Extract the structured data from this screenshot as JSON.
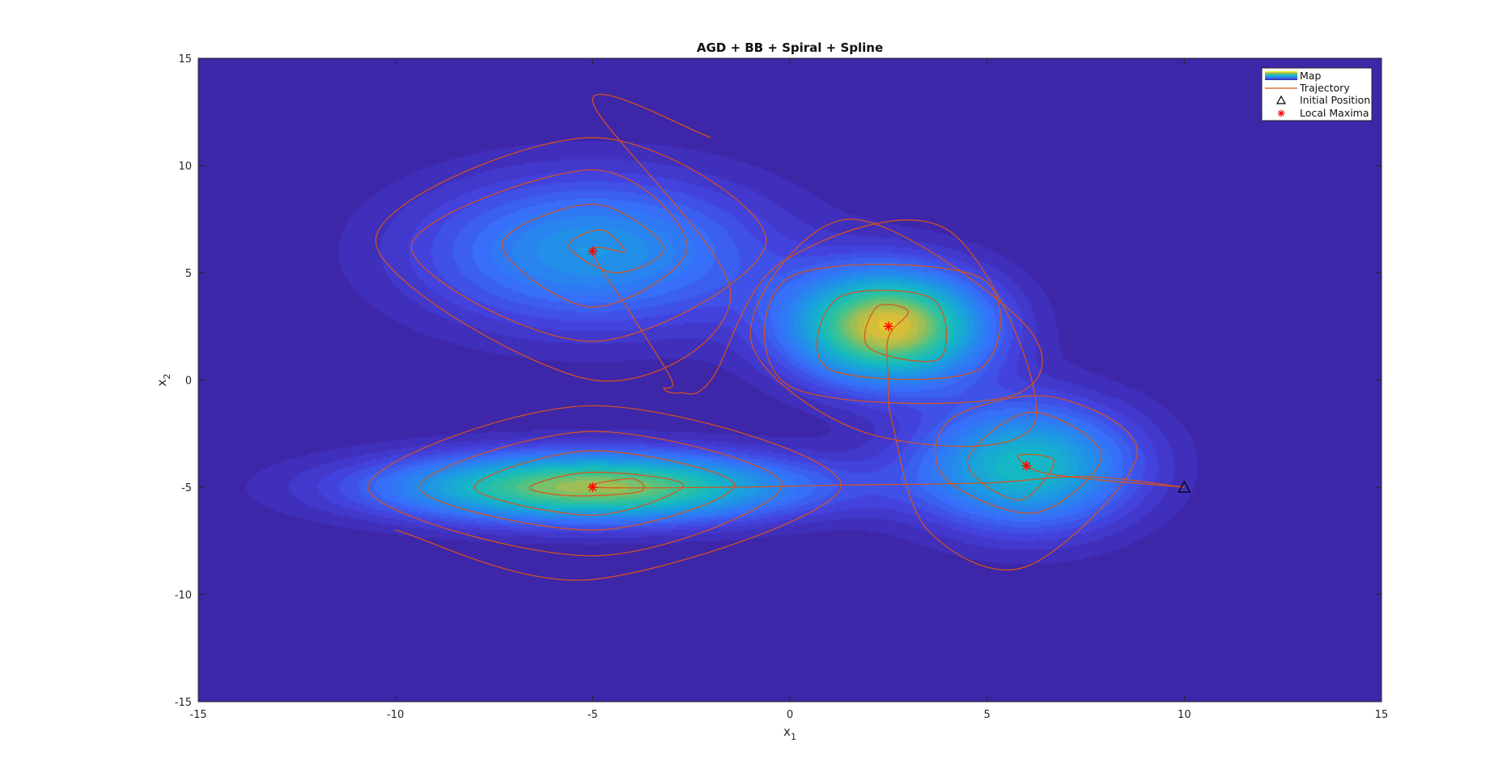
{
  "chart_data": {
    "type": "heatmap",
    "title": "AGD + BB + Spiral + Spline",
    "xlabel": "x",
    "xlabel_sub": "1",
    "ylabel": "x",
    "ylabel_sub": "2",
    "xlim": [
      -15,
      15
    ],
    "ylim": [
      -15,
      15
    ],
    "xticks": [
      -15,
      -10,
      -5,
      0,
      5,
      10,
      15
    ],
    "yticks": [
      -15,
      -10,
      -5,
      0,
      5,
      10,
      15
    ],
    "grid": false,
    "legend_placement": "top-right",
    "legend": [
      {
        "name": "Map",
        "kind": "colorbar"
      },
      {
        "name": "Trajectory",
        "kind": "line"
      },
      {
        "name": "Initial Position",
        "kind": "triangle"
      },
      {
        "name": "Local Maxima",
        "kind": "asterisk"
      }
    ],
    "map_peaks": [
      {
        "x": -5,
        "y": 6,
        "sx": 3.0,
        "sy": 2.4,
        "amp": 0.42
      },
      {
        "x": 2.5,
        "y": 2.5,
        "sx": 1.7,
        "sy": 1.8,
        "amp": 0.92
      },
      {
        "x": -5,
        "y": -5,
        "sx": 3.6,
        "sy": 1.1,
        "amp": 0.82
      },
      {
        "x": 6,
        "y": -4,
        "sx": 1.9,
        "sy": 2.0,
        "amp": 0.58
      }
    ],
    "initial_position": {
      "x": 10,
      "y": -5
    },
    "local_maxima": [
      {
        "x": 6,
        "y": -4
      },
      {
        "x": 2.5,
        "y": 2.5
      },
      {
        "x": -5,
        "y": 6
      },
      {
        "x": -5,
        "y": -5
      }
    ],
    "trajectory": [
      {
        "x": 10,
        "y": -5
      },
      {
        "x": 7.5,
        "y": -4.6
      },
      {
        "x": 6.2,
        "y": -4.2
      },
      {
        "x": 5.8,
        "y": -3.5
      },
      {
        "x": 6.7,
        "y": -3.8
      },
      {
        "x": 5.8,
        "y": -5.6
      },
      {
        "x": 4.5,
        "y": -3.8
      },
      {
        "x": 6.1,
        "y": -1.5
      },
      {
        "x": 7.9,
        "y": -3.5
      },
      {
        "x": 6.2,
        "y": -6.2
      },
      {
        "x": 3.9,
        "y": -4.5
      },
      {
        "x": 4.1,
        "y": -1.8
      },
      {
        "x": 6.7,
        "y": -0.8
      },
      {
        "x": 8.8,
        "y": -3.5
      },
      {
        "x": 6.0,
        "y": -8.7
      },
      {
        "x": 3.5,
        "y": -7.0
      },
      {
        "x": 2.6,
        "y": -2.0
      },
      {
        "x": 2.5,
        "y": 0.0
      },
      {
        "x": 2.5,
        "y": 2.0
      },
      {
        "x": 3.0,
        "y": 3.2
      },
      {
        "x": 2.2,
        "y": 3.4
      },
      {
        "x": 2.0,
        "y": 1.5
      },
      {
        "x": 3.8,
        "y": 1.0
      },
      {
        "x": 3.6,
        "y": 3.8
      },
      {
        "x": 1.2,
        "y": 3.8
      },
      {
        "x": 1.0,
        "y": 0.5
      },
      {
        "x": 4.8,
        "y": 0.5
      },
      {
        "x": 4.8,
        "y": 4.8
      },
      {
        "x": 0.0,
        "y": 4.8
      },
      {
        "x": 0.0,
        "y": -0.3
      },
      {
        "x": 5.5,
        "y": -0.8
      },
      {
        "x": 6.0,
        "y": 2.5
      },
      {
        "x": 1.5,
        "y": 7.5
      },
      {
        "x": -1.0,
        "y": 2.0
      },
      {
        "x": 2.0,
        "y": -2.5
      },
      {
        "x": 6.2,
        "y": -2.0
      },
      {
        "x": 4.0,
        "y": 7.0
      },
      {
        "x": -0.2,
        "y": 5.5
      },
      {
        "x": -2.0,
        "y": 0.0
      },
      {
        "x": -2.8,
        "y": -0.6
      },
      {
        "x": -3.2,
        "y": -0.4
      },
      {
        "x": -3.0,
        "y": 0.0
      },
      {
        "x": -4.0,
        "y": 3.0
      },
      {
        "x": -5.0,
        "y": 6.0
      },
      {
        "x": -4.2,
        "y": 6.0
      },
      {
        "x": -4.8,
        "y": 7.0
      },
      {
        "x": -5.6,
        "y": 6.2
      },
      {
        "x": -4.4,
        "y": 5.0
      },
      {
        "x": -3.2,
        "y": 6.2
      },
      {
        "x": -5.0,
        "y": 8.2
      },
      {
        "x": -7.3,
        "y": 6.3
      },
      {
        "x": -5.0,
        "y": 3.4
      },
      {
        "x": -2.6,
        "y": 6.2
      },
      {
        "x": -5.0,
        "y": 9.8
      },
      {
        "x": -9.6,
        "y": 6.2
      },
      {
        "x": -5.0,
        "y": 1.8
      },
      {
        "x": -0.6,
        "y": 6.5
      },
      {
        "x": -5.0,
        "y": 11.3
      },
      {
        "x": -10.5,
        "y": 6.5
      },
      {
        "x": -5.0,
        "y": 0.0
      },
      {
        "x": -1.5,
        "y": 4.0
      },
      {
        "x": -5.0,
        "y": 13.0
      },
      {
        "x": -2.0,
        "y": 11.3
      }
    ],
    "trajectory_b": [
      {
        "x": 10,
        "y": -5
      },
      {
        "x": 7.5,
        "y": -4.5
      },
      {
        "x": 5.0,
        "y": -4.8
      },
      {
        "x": 1.3,
        "y": -4.9
      },
      {
        "x": -1.5,
        "y": -5.0
      },
      {
        "x": -5.0,
        "y": -5.0
      },
      {
        "x": -4.0,
        "y": -4.6
      },
      {
        "x": -3.8,
        "y": -5.2
      },
      {
        "x": -5.5,
        "y": -5.4
      },
      {
        "x": -6.6,
        "y": -5.0
      },
      {
        "x": -5.0,
        "y": -4.3
      },
      {
        "x": -2.7,
        "y": -4.9
      },
      {
        "x": -5.0,
        "y": -6.3
      },
      {
        "x": -8.0,
        "y": -5.0
      },
      {
        "x": -5.0,
        "y": -3.3
      },
      {
        "x": -1.4,
        "y": -4.9
      },
      {
        "x": -5.0,
        "y": -7.0
      },
      {
        "x": -9.4,
        "y": -5.0
      },
      {
        "x": -5.0,
        "y": -2.4
      },
      {
        "x": -0.2,
        "y": -4.9
      },
      {
        "x": -5.0,
        "y": -8.2
      },
      {
        "x": -10.7,
        "y": -5.0
      },
      {
        "x": -5.0,
        "y": -1.2
      },
      {
        "x": 1.3,
        "y": -4.9
      },
      {
        "x": -5.0,
        "y": -9.3
      },
      {
        "x": -10.0,
        "y": -7.0
      }
    ]
  }
}
